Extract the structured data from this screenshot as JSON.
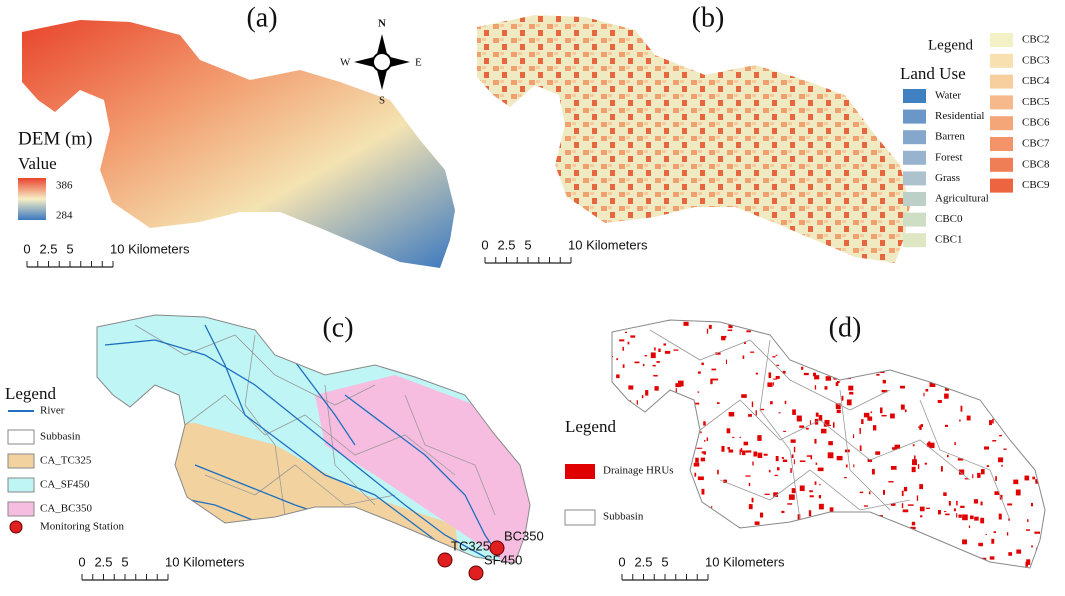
{
  "panels": [
    {
      "label": "(a)",
      "scale": [
        "0",
        "2.5",
        "5",
        "10 Kilometers"
      ],
      "compass": [
        "N",
        "E",
        "S",
        "W"
      ],
      "legend": {
        "title": "DEM (m)",
        "subtitle": "Value",
        "high": "386",
        "low": "284"
      }
    },
    {
      "label": "(b)",
      "scale": [
        "0",
        "2.5",
        "5",
        "10 Kilometers"
      ],
      "legend": {
        "title": "Legend",
        "subtitle": "Land Use",
        "items": [
          "Water",
          "Residential",
          "Barren",
          "Forest",
          "Grass",
          "Agricultural",
          "CBC0",
          "CBC1",
          "CBC2",
          "CBC3",
          "CBC4",
          "CBC5",
          "CBC6",
          "CBC7",
          "CBC8",
          "CBC9"
        ]
      }
    },
    {
      "label": "(c)",
      "scale": [
        "0",
        "2.5",
        "5",
        "10 Kilometers"
      ],
      "legend": {
        "title": "Legend",
        "items": [
          "River",
          "Subbasin",
          "CA_TC325",
          "CA_SF450",
          "CA_BC350",
          "Monitoring Station"
        ]
      },
      "stations": [
        "TC325",
        "SF450",
        "BC350"
      ]
    },
    {
      "label": "(d)",
      "scale": [
        "0",
        "2.5",
        "5",
        "10 Kilometers"
      ],
      "legend": {
        "title": "Legend",
        "items": [
          "Drainage HRUs",
          "Subbasin"
        ]
      }
    }
  ]
}
